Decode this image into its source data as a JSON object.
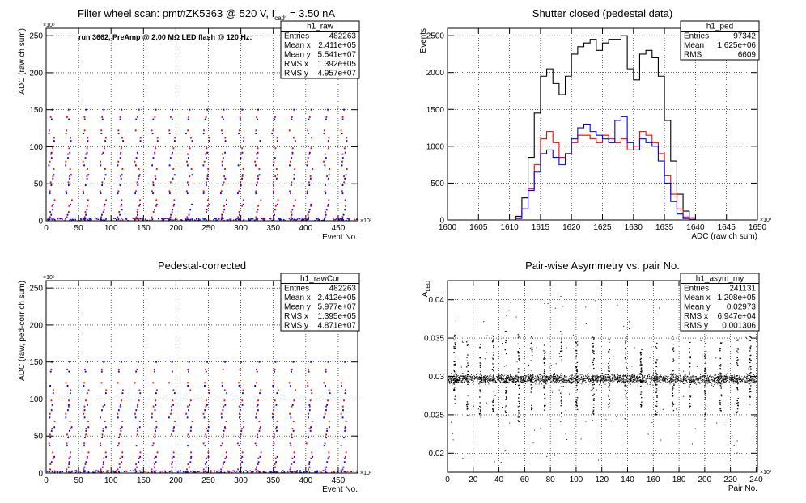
{
  "chart_data": [
    {
      "type": "scatter",
      "id": "raw",
      "title_prefix": "Filter wheel scan: pmt#ZK5363 @   520 V, I",
      "title_sub": "cath",
      "title_suffix": " = 3.50 nA",
      "annotation": "run 3662, PreAmp @ 2.00 MΩ LED flash @  120 Hz:",
      "xlabel": "Event No.",
      "ylabel": "ADC (raw ch sum)",
      "xlim": [
        0,
        480
      ],
      "ylim": [
        0,
        260
      ],
      "x_exponent": "×10³",
      "y_exponent": "×10⁶",
      "xticks": [
        0,
        50,
        100,
        150,
        200,
        250,
        300,
        350,
        400,
        450
      ],
      "yticks": [
        0,
        50,
        100,
        150,
        200,
        250
      ],
      "grid": true,
      "stats": {
        "name": "h1_raw",
        "rows": [
          [
            "Entries",
            "482263"
          ],
          [
            "Mean x",
            "2.411e+05"
          ],
          [
            "Mean y",
            "5.541e+07"
          ],
          [
            "RMS x",
            "1.392e+05"
          ],
          [
            "RMS y",
            "4.957e+07"
          ]
        ]
      },
      "series": [
        {
          "color": "#0000ff",
          "levels": [
            2,
            8,
            15,
            22,
            37,
            48,
            57,
            62,
            75,
            85,
            92,
            108,
            118,
            137,
            150
          ]
        },
        {
          "color": "#ff0000",
          "levels": [
            5,
            12,
            20,
            28,
            40,
            52,
            60,
            70,
            80,
            90,
            98,
            112,
            122,
            140
          ]
        }
      ],
      "period": 26.5
    },
    {
      "type": "line",
      "id": "ped",
      "title": "Shutter closed (pedestal data)",
      "xlabel": "ADC (raw ch sum)",
      "ylabel": "Events",
      "xlim": [
        1600,
        1650
      ],
      "ylim": [
        0,
        2600
      ],
      "x_exponent": "×10³",
      "xticks": [
        1600,
        1605,
        1610,
        1615,
        1620,
        1625,
        1630,
        1635,
        1640,
        1645,
        1650
      ],
      "yticks": [
        0,
        500,
        1000,
        1500,
        2000,
        2500
      ],
      "grid": true,
      "stats": {
        "name": "h1_ped",
        "rows": [
          [
            "Entries",
            "97342"
          ],
          [
            "Mean",
            "1.625e+06"
          ],
          [
            "RMS",
            "6609"
          ]
        ]
      },
      "series": [
        {
          "color": "#000000",
          "x": [
            1600,
            1610,
            1611,
            1612,
            1613,
            1614,
            1615,
            1616,
            1617,
            1618,
            1619,
            1620,
            1621,
            1622,
            1623,
            1624,
            1625,
            1626,
            1627,
            1628,
            1629,
            1630,
            1631,
            1632,
            1633,
            1634,
            1635,
            1636,
            1637,
            1638,
            1639,
            1640,
            1650
          ],
          "y": [
            0,
            0,
            50,
            300,
            850,
            1450,
            1950,
            2050,
            1850,
            1700,
            1950,
            2250,
            2350,
            2400,
            2450,
            2300,
            2400,
            2450,
            2450,
            2500,
            2050,
            1900,
            2250,
            2300,
            2200,
            1950,
            1350,
            800,
            350,
            120,
            30,
            0,
            0
          ]
        },
        {
          "color": "#ff0000",
          "x": [
            1600,
            1610,
            1611,
            1612,
            1613,
            1614,
            1615,
            1616,
            1617,
            1618,
            1619,
            1620,
            1621,
            1622,
            1623,
            1624,
            1625,
            1626,
            1627,
            1628,
            1629,
            1630,
            1631,
            1632,
            1633,
            1634,
            1635,
            1636,
            1637,
            1638,
            1639,
            1640,
            1650
          ],
          "y": [
            0,
            0,
            30,
            150,
            420,
            750,
            1100,
            1200,
            1050,
            850,
            900,
            1050,
            1150,
            1150,
            1100,
            1050,
            1150,
            1100,
            1050,
            1100,
            950,
            1000,
            1200,
            1150,
            1050,
            900,
            600,
            350,
            150,
            40,
            10,
            0,
            0
          ]
        },
        {
          "color": "#0000ff",
          "x": [
            1600,
            1610,
            1611,
            1612,
            1613,
            1614,
            1615,
            1616,
            1617,
            1618,
            1619,
            1620,
            1621,
            1622,
            1623,
            1624,
            1625,
            1626,
            1627,
            1628,
            1629,
            1630,
            1631,
            1632,
            1633,
            1634,
            1635,
            1636,
            1637,
            1638,
            1639,
            1640,
            1650
          ],
          "y": [
            0,
            0,
            20,
            150,
            400,
            650,
            900,
            950,
            850,
            750,
            900,
            1100,
            1250,
            1300,
            1200,
            1150,
            1100,
            1050,
            1350,
            1400,
            1050,
            950,
            1100,
            1050,
            1000,
            800,
            500,
            250,
            80,
            20,
            5,
            0,
            0
          ]
        }
      ]
    },
    {
      "type": "scatter",
      "id": "rawcor",
      "title": "Pedestal-corrected",
      "xlabel": "Event No.",
      "ylabel": "ADC (raw, ped-corr ch sum)",
      "xlim": [
        0,
        480
      ],
      "ylim": [
        0,
        260
      ],
      "x_exponent": "×10³",
      "y_exponent": "×10⁶",
      "xticks": [
        0,
        50,
        100,
        150,
        200,
        250,
        300,
        350,
        400,
        450
      ],
      "yticks": [
        0,
        50,
        100,
        150,
        200,
        250
      ],
      "grid": true,
      "stats": {
        "name": "h1_rawCor",
        "rows": [
          [
            "Entries",
            "482263"
          ],
          [
            "Mean x",
            "2.412e+05"
          ],
          [
            "Mean y",
            "5.977e+07"
          ],
          [
            "RMS x",
            "1.395e+05"
          ],
          [
            "RMS y",
            "4.871e+07"
          ]
        ]
      },
      "series": [
        {
          "color": "#0000ff",
          "levels": [
            2,
            8,
            15,
            22,
            37,
            48,
            57,
            62,
            75,
            85,
            92,
            108,
            118,
            137,
            150
          ]
        },
        {
          "color": "#ff0000",
          "levels": [
            5,
            12,
            20,
            28,
            40,
            52,
            60,
            70,
            80,
            90,
            98,
            112,
            122,
            140
          ]
        }
      ],
      "period": 26.5
    },
    {
      "type": "scatter",
      "id": "asym",
      "title": "Pair-wise Asymmetry vs. pair No.",
      "xlabel": "Pair No.",
      "ylabel_main": "A",
      "ylabel_sub": "LED",
      "xlim": [
        0,
        241
      ],
      "ylim": [
        0.0175,
        0.0425
      ],
      "x_exponent": "×10³",
      "xticks": [
        0,
        20,
        40,
        60,
        80,
        100,
        120,
        140,
        160,
        180,
        200,
        220,
        240
      ],
      "yticks": [
        0.02,
        0.025,
        0.03,
        0.035,
        0.04
      ],
      "grid": true,
      "stats": {
        "name": "h1_asym_my",
        "rows": [
          [
            "Entries",
            "241131"
          ],
          [
            "Mean x",
            "1.208e+05"
          ],
          [
            "Mean y",
            "0.02973"
          ],
          [
            "RMS x",
            "6.947e+04"
          ],
          [
            "RMS y",
            "0.001306"
          ]
        ]
      },
      "baseline": 0.0297,
      "spikes": [
        {
          "x": 5,
          "up": 0.0355,
          "down": 0.0265
        },
        {
          "x": 15,
          "up": 0.035,
          "down": 0.0245
        },
        {
          "x": 25,
          "up": 0.0345,
          "down": 0.0245
        },
        {
          "x": 35,
          "up": 0.0355,
          "down": 0.025
        },
        {
          "x": 45,
          "up": 0.036,
          "down": 0.0245
        },
        {
          "x": 55,
          "up": 0.036,
          "down": 0.0235
        },
        {
          "x": 65,
          "up": 0.0355,
          "down": 0.025
        },
        {
          "x": 75,
          "up": 0.0345,
          "down": 0.0255
        },
        {
          "x": 88,
          "up": 0.036,
          "down": 0.024
        },
        {
          "x": 100,
          "up": 0.0345,
          "down": 0.0255
        },
        {
          "x": 113,
          "up": 0.0355,
          "down": 0.025
        },
        {
          "x": 125,
          "up": 0.035,
          "down": 0.0255
        },
        {
          "x": 138,
          "up": 0.0355,
          "down": 0.0245
        },
        {
          "x": 150,
          "up": 0.0345,
          "down": 0.0255
        },
        {
          "x": 162,
          "up": 0.0345,
          "down": 0.025
        },
        {
          "x": 175,
          "up": 0.0355,
          "down": 0.0255
        },
        {
          "x": 188,
          "up": 0.0345,
          "down": 0.0255
        },
        {
          "x": 200,
          "up": 0.0345,
          "down": 0.025
        },
        {
          "x": 212,
          "up": 0.0345,
          "down": 0.025
        },
        {
          "x": 225,
          "up": 0.035,
          "down": 0.025
        },
        {
          "x": 235,
          "up": 0.0355,
          "down": 0.026
        }
      ]
    }
  ]
}
